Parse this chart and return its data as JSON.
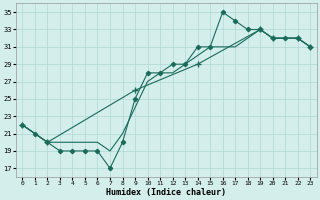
{
  "xlabel": "Humidex (Indice chaleur)",
  "bg_color": "#d4eeeb",
  "grid_color": "#b0d8d4",
  "line_color": "#1a6b5a",
  "xlim": [
    -0.5,
    23.5
  ],
  "ylim": [
    16,
    36
  ],
  "xticks": [
    0,
    1,
    2,
    3,
    4,
    5,
    6,
    7,
    8,
    9,
    10,
    11,
    12,
    13,
    14,
    15,
    16,
    17,
    18,
    19,
    20,
    21,
    22,
    23
  ],
  "yticks": [
    17,
    19,
    21,
    23,
    25,
    27,
    29,
    31,
    33,
    35
  ],
  "series1_x": [
    0,
    1,
    2,
    3,
    4,
    5,
    6,
    7,
    8,
    9,
    10,
    11,
    12,
    13,
    14,
    15,
    16,
    17,
    18,
    19,
    20,
    21,
    22,
    23
  ],
  "series1_y": [
    22,
    21,
    20,
    19,
    19,
    19,
    19,
    17,
    20,
    25,
    28,
    28,
    29,
    29,
    31,
    31,
    35,
    34,
    33,
    33,
    32,
    32,
    32,
    31
  ],
  "series2_x": [
    0,
    1,
    2,
    3,
    4,
    5,
    6,
    7,
    8,
    9,
    10,
    11,
    12,
    13,
    14,
    15,
    16,
    17,
    18,
    19,
    20,
    21,
    22,
    23
  ],
  "series2_y": [
    22,
    21,
    20,
    20,
    20,
    20,
    20,
    19,
    21,
    24,
    27,
    28,
    28,
    29,
    30,
    31,
    31,
    31,
    32,
    33,
    32,
    32,
    32,
    31
  ],
  "series3_x": [
    0,
    2,
    9,
    14,
    19,
    20,
    22,
    23
  ],
  "series3_y": [
    22,
    20,
    26,
    29,
    33,
    32,
    32,
    31
  ]
}
